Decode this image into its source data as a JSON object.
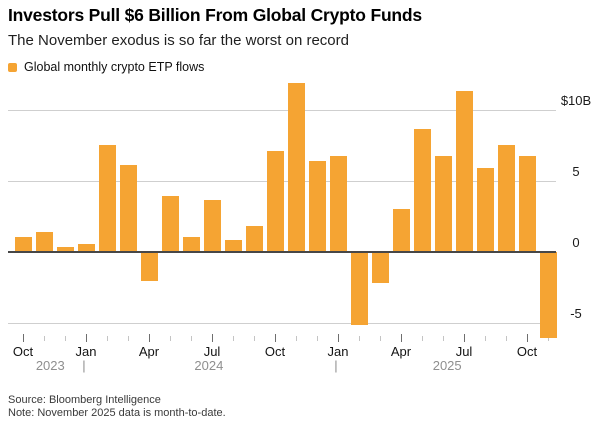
{
  "title": "Investors Pull $6 Billion From Global Crypto Funds",
  "subtitle": "The November exodus is so far the worst on record",
  "legend": {
    "label": "Global monthly crypto ETP flows"
  },
  "footer": {
    "source": "Source: Bloomberg Intelligence",
    "note": "Note: November 2025 data is month-to-date."
  },
  "chart_data": {
    "type": "bar",
    "title": "Investors Pull $6 Billion From Global Crypto Funds",
    "series_label": "Global monthly crypto ETP flows",
    "unit": "billion USD",
    "bar_color": "#F5A433",
    "grid": true,
    "legend_position": "top-left",
    "ylim": [
      -7.2,
      12.6
    ],
    "categories": [
      "Oct 2023",
      "Nov 2023",
      "Dec 2023",
      "Jan 2024",
      "Feb 2024",
      "Mar 2024",
      "Apr 2024",
      "May 2024",
      "Jun 2024",
      "Jul 2024",
      "Aug 2024",
      "Sep 2024",
      "Oct 2024",
      "Nov 2024",
      "Dec 2024",
      "Jan 2025",
      "Feb 2025",
      "Mar 2025",
      "Apr 2025",
      "May 2025",
      "Jun 2025",
      "Jul 2025",
      "Aug 2025",
      "Sep 2025",
      "Oct 2025",
      "Nov 2025"
    ],
    "values": [
      1.0,
      1.4,
      0.3,
      0.5,
      7.5,
      6.1,
      -2.1,
      3.9,
      1.0,
      3.6,
      0.8,
      1.8,
      7.1,
      11.9,
      6.4,
      6.7,
      -5.2,
      -2.2,
      3.0,
      8.6,
      6.7,
      11.3,
      5.9,
      7.5,
      6.7,
      -6.1
    ],
    "y_ticks": [
      {
        "value": 10,
        "label": "$10B"
      },
      {
        "value": 5,
        "label": "5"
      },
      {
        "value": 0,
        "label": "0"
      },
      {
        "value": -5,
        "label": "-5"
      }
    ],
    "x_tick_labels": [
      {
        "index": 0,
        "label": "Oct"
      },
      {
        "index": 3,
        "label": "Jan"
      },
      {
        "index": 6,
        "label": "Apr"
      },
      {
        "index": 9,
        "label": "Jul"
      },
      {
        "index": 12,
        "label": "Oct"
      },
      {
        "index": 15,
        "label": "Jan"
      },
      {
        "index": 18,
        "label": "Apr"
      },
      {
        "index": 21,
        "label": "Jul"
      },
      {
        "index": 24,
        "label": "Oct"
      }
    ],
    "year_labels": [
      {
        "label": "2023",
        "center_index": 1.3
      },
      {
        "label": "2024",
        "center_index": 8.85
      },
      {
        "label": "2025",
        "center_index": 20.2
      }
    ],
    "year_separator_indices": [
      3,
      15
    ]
  }
}
